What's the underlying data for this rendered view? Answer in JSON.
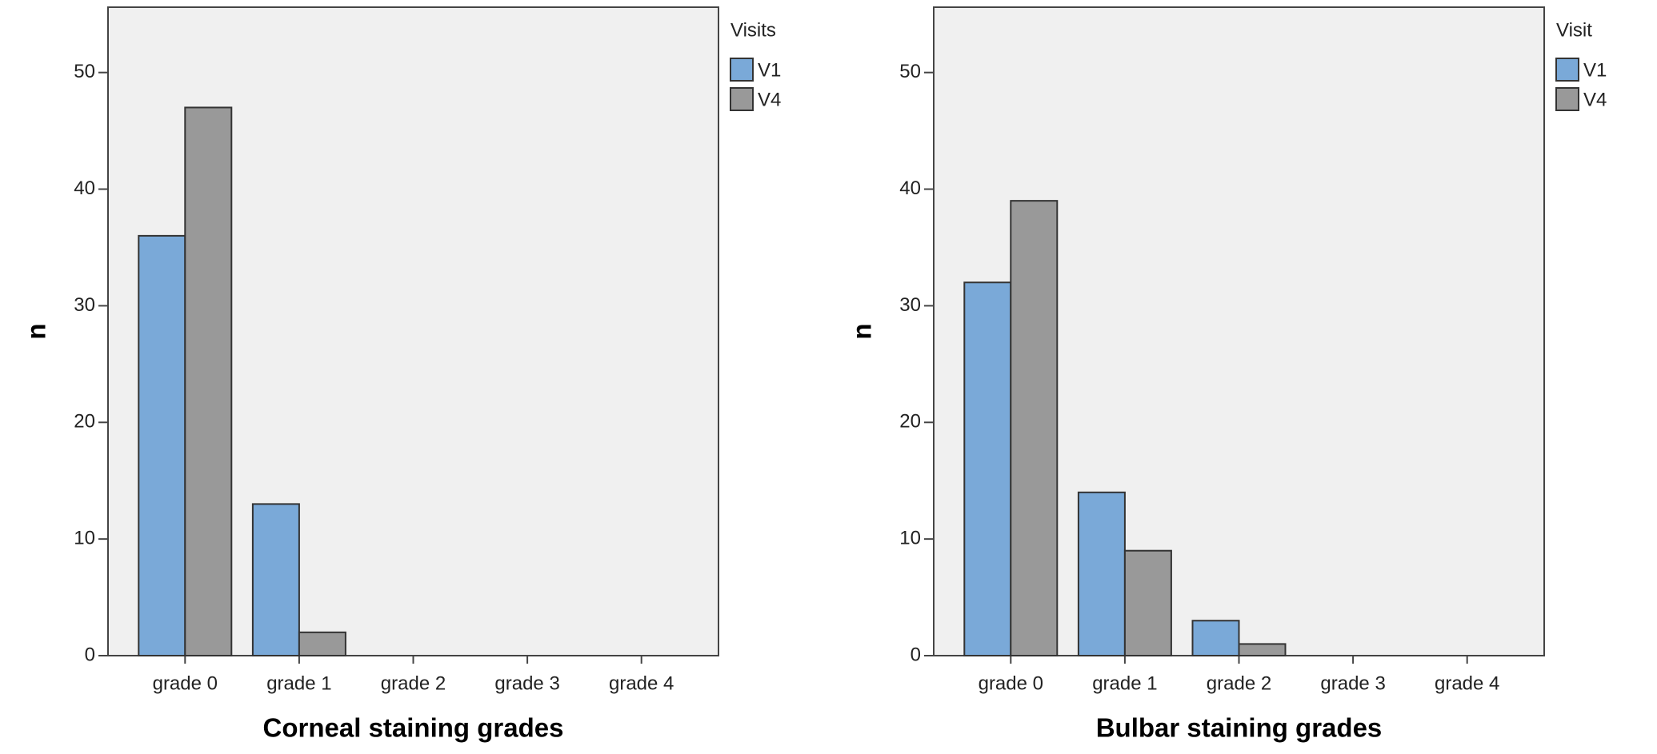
{
  "chart_data": [
    {
      "type": "bar",
      "x_label": "Corneal staining grades",
      "y_label": "n",
      "legend_title": "Visits",
      "categories": [
        "grade 0",
        "grade 1",
        "grade 2",
        "grade 3",
        "grade 4"
      ],
      "series": [
        {
          "name": "V1",
          "color": "#7aa9d8",
          "values": [
            36,
            13,
            0,
            0,
            0
          ]
        },
        {
          "name": "V4",
          "color": "#999999",
          "values": [
            47,
            2,
            0,
            0,
            0
          ]
        }
      ],
      "ylim": [
        0,
        55.6
      ],
      "yticks": [
        0,
        10,
        20,
        30,
        40,
        50
      ]
    },
    {
      "type": "bar",
      "x_label": "Bulbar staining grades",
      "y_label": "n",
      "legend_title": "Visit",
      "categories": [
        "grade 0",
        "grade 1",
        "grade 2",
        "grade 3",
        "grade 4"
      ],
      "series": [
        {
          "name": "V1",
          "color": "#7aa9d8",
          "values": [
            32,
            14,
            3,
            0,
            0
          ]
        },
        {
          "name": "V4",
          "color": "#999999",
          "values": [
            39,
            9,
            1,
            0,
            0
          ]
        }
      ],
      "ylim": [
        0,
        55.6
      ],
      "yticks": [
        0,
        10,
        20,
        30,
        40,
        50
      ]
    }
  ]
}
